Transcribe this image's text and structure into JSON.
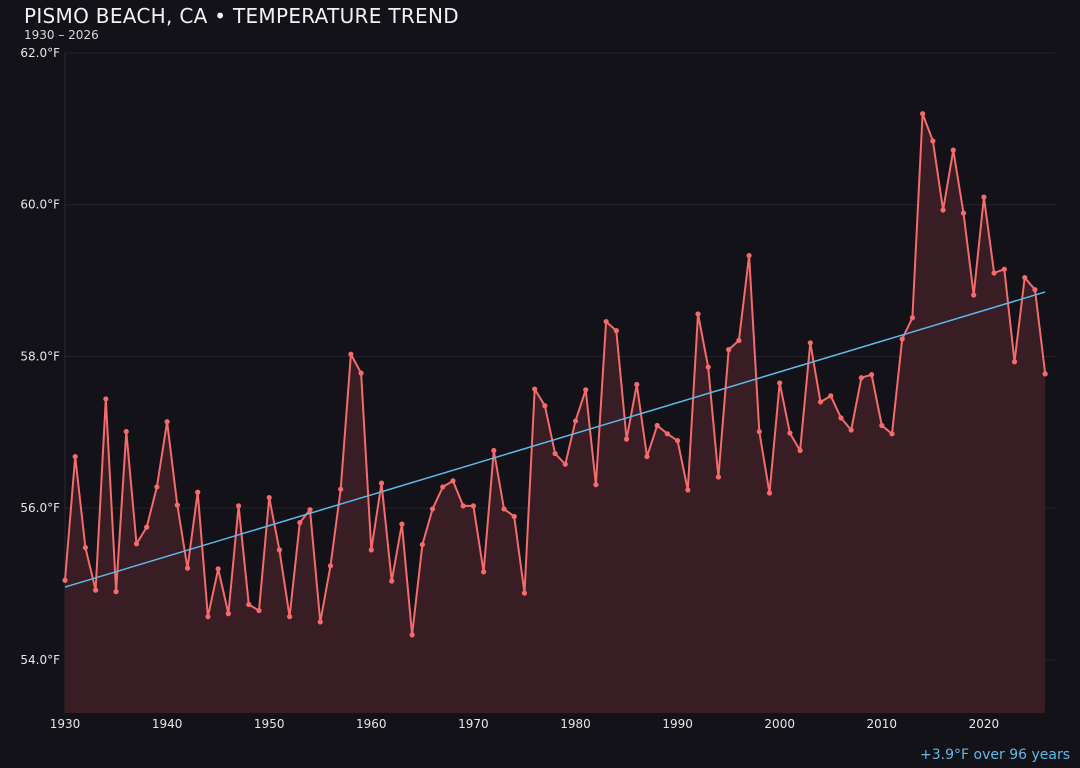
{
  "chart_data": {
    "type": "line",
    "title": "PISMO BEACH, CA • TEMPERATURE TREND",
    "subtitle": "1930 – 2026",
    "xlabel": "",
    "ylabel": "",
    "xlim": [
      1930,
      2027
    ],
    "ylim": [
      53.3,
      62.0
    ],
    "grid": true,
    "x_ticks": [
      "1930",
      "1940",
      "1950",
      "1960",
      "1970",
      "1980",
      "1990",
      "2000",
      "2010",
      "2020"
    ],
    "y_ticks": [
      "54.0°F",
      "56.0°F",
      "58.0°F",
      "60.0°F",
      "62.0°F"
    ],
    "x": [
      1930,
      1931,
      1932,
      1933,
      1934,
      1935,
      1936,
      1937,
      1938,
      1939,
      1940,
      1941,
      1942,
      1943,
      1944,
      1945,
      1946,
      1947,
      1948,
      1949,
      1950,
      1951,
      1952,
      1953,
      1954,
      1955,
      1956,
      1957,
      1958,
      1959,
      1960,
      1961,
      1962,
      1963,
      1964,
      1965,
      1966,
      1967,
      1968,
      1969,
      1970,
      1971,
      1972,
      1973,
      1974,
      1975,
      1976,
      1977,
      1978,
      1979,
      1980,
      1981,
      1982,
      1983,
      1984,
      1985,
      1986,
      1987,
      1988,
      1989,
      1990,
      1991,
      1992,
      1993,
      1994,
      1995,
      1996,
      1997,
      1998,
      1999,
      2000,
      2001,
      2002,
      2003,
      2004,
      2005,
      2006,
      2007,
      2008,
      2009,
      2010,
      2011,
      2012,
      2013,
      2014,
      2015,
      2016,
      2017,
      2018,
      2019,
      2020,
      2021,
      2022,
      2023,
      2024,
      2025,
      2026
    ],
    "series": [
      {
        "values": [
          55.05,
          56.68,
          55.48,
          54.92,
          57.44,
          54.9,
          57.01,
          55.53,
          55.75,
          56.28,
          57.14,
          56.04,
          55.21,
          56.21,
          54.57,
          55.2,
          54.61,
          56.03,
          54.73,
          54.65,
          56.14,
          55.45,
          54.57,
          55.81,
          55.98,
          54.5,
          55.24,
          56.25,
          58.03,
          57.78,
          55.45,
          56.33,
          55.04,
          55.79,
          54.33,
          55.52,
          55.99,
          56.28,
          56.36,
          56.03,
          56.03,
          55.16,
          56.76,
          55.99,
          55.89,
          54.88,
          57.57,
          57.35,
          56.72,
          56.58,
          57.15,
          57.56,
          56.31,
          58.46,
          58.34,
          56.91,
          57.63,
          56.68,
          57.09,
          56.98,
          56.89,
          56.24,
          58.56,
          57.86,
          56.41,
          58.09,
          58.21,
          59.33,
          57.01,
          56.2,
          57.65,
          56.99,
          56.76,
          58.18,
          57.4,
          57.48,
          57.19,
          57.03,
          57.72,
          57.76,
          57.09,
          56.98,
          58.23,
          58.51,
          61.2,
          60.84,
          59.93,
          60.72,
          59.89,
          58.81,
          60.1,
          59.1,
          59.15,
          57.93,
          59.04,
          58.88,
          57.77
        ],
        "color": "#f46b6b"
      }
    ],
    "trend": {
      "start": [
        1930,
        54.96
      ],
      "end": [
        2026,
        58.85
      ],
      "color": "#5fb8e8"
    },
    "annotation": "+3.9°F over 96 years"
  }
}
